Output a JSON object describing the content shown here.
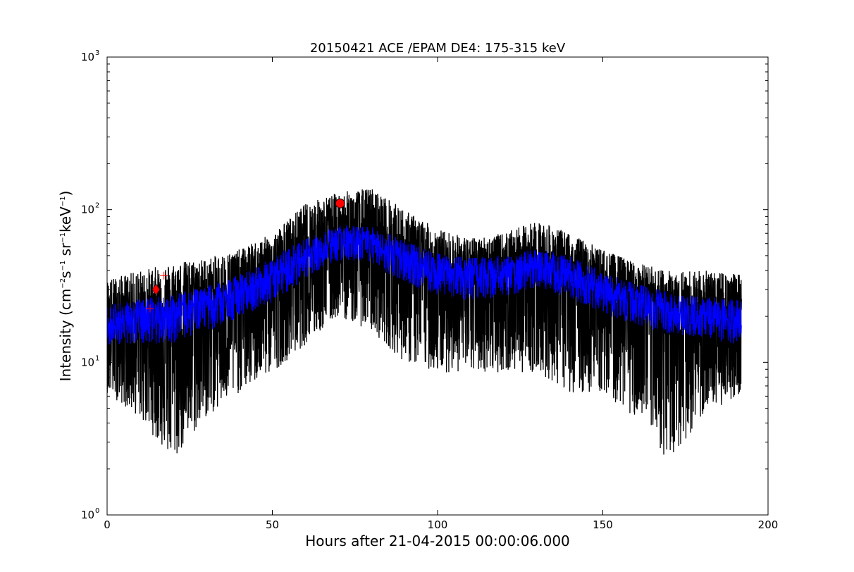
{
  "chart_data": {
    "type": "line",
    "title": "20150421 ACE /EPAM DE4: 175-315 keV",
    "xlabel": "Hours after 21-04-2015 00:00:06.000",
    "ylabel": {
      "prefix": "Intensity (cm",
      "exp1": "−2",
      "mid1": "s",
      "exp2": "−1",
      "mid2": " sr",
      "exp3": "−1",
      "mid3": "keV",
      "exp4": "−1",
      "suffix": ")"
    },
    "xlim": [
      0,
      200
    ],
    "ylim": [
      1,
      1000
    ],
    "yscale": "log",
    "x_ticks": [
      0,
      50,
      100,
      150,
      200
    ],
    "y_ticks": [
      {
        "value": 1,
        "base": "10",
        "exp": "0"
      },
      {
        "value": 10,
        "base": "10",
        "exp": "1"
      },
      {
        "value": 100,
        "base": "10",
        "exp": "2"
      },
      {
        "value": 1000,
        "base": "10",
        "exp": "3"
      }
    ],
    "grid": false,
    "series": [
      {
        "role": "raw data",
        "color": "#000000",
        "x": [
          0,
          10,
          20,
          30,
          40,
          50,
          60,
          70,
          80,
          90,
          100,
          110,
          120,
          130,
          140,
          150,
          160,
          170,
          180,
          192
        ],
        "median": [
          18,
          19,
          21,
          24,
          29,
          36,
          50,
          62,
          60,
          48,
          40,
          37,
          38,
          42,
          38,
          30,
          25,
          22,
          20,
          19
        ],
        "low": [
          6.3,
          4.3,
          2.2,
          4.3,
          6.3,
          8.6,
          13,
          20,
          16,
          10,
          8.6,
          8.6,
          8.6,
          8.6,
          6.3,
          6.3,
          4.3,
          2.2,
          4.3,
          6.3
        ],
        "high": [
          35,
          40,
          45,
          48,
          55,
          70,
          110,
          130,
          140,
          100,
          75,
          65,
          70,
          85,
          70,
          55,
          45,
          40,
          40,
          38
        ]
      },
      {
        "role": "smoothed data",
        "color": "#0000ff",
        "x": [
          0,
          10,
          20,
          30,
          40,
          50,
          60,
          70,
          80,
          90,
          100,
          110,
          120,
          130,
          140,
          150,
          160,
          170,
          180,
          192
        ],
        "median": [
          18,
          19,
          21,
          24,
          29,
          36,
          50,
          62,
          60,
          48,
          40,
          37,
          38,
          42,
          38,
          30,
          25,
          22,
          20,
          19
        ],
        "low": [
          12,
          12,
          12,
          14,
          18,
          22,
          32,
          42,
          40,
          30,
          25,
          23,
          24,
          28,
          24,
          19,
          16,
          14,
          13,
          12
        ],
        "high": [
          27,
          28,
          30,
          34,
          40,
          52,
          70,
          85,
          82,
          68,
          56,
          52,
          54,
          60,
          54,
          42,
          35,
          31,
          29,
          28
        ]
      }
    ],
    "markers": [
      {
        "shape": "circle",
        "color": "#ff0000",
        "x": 70.5,
        "y": 110
      },
      {
        "shape": "diamond",
        "color": "#ff0000",
        "x": 14.8,
        "y": 30
      },
      {
        "shape": "plus",
        "color": "#ff0000",
        "x": 13.0,
        "y": 22.5
      },
      {
        "shape": "plus",
        "color": "#ff0000",
        "x": 17.2,
        "y": 37
      }
    ]
  }
}
